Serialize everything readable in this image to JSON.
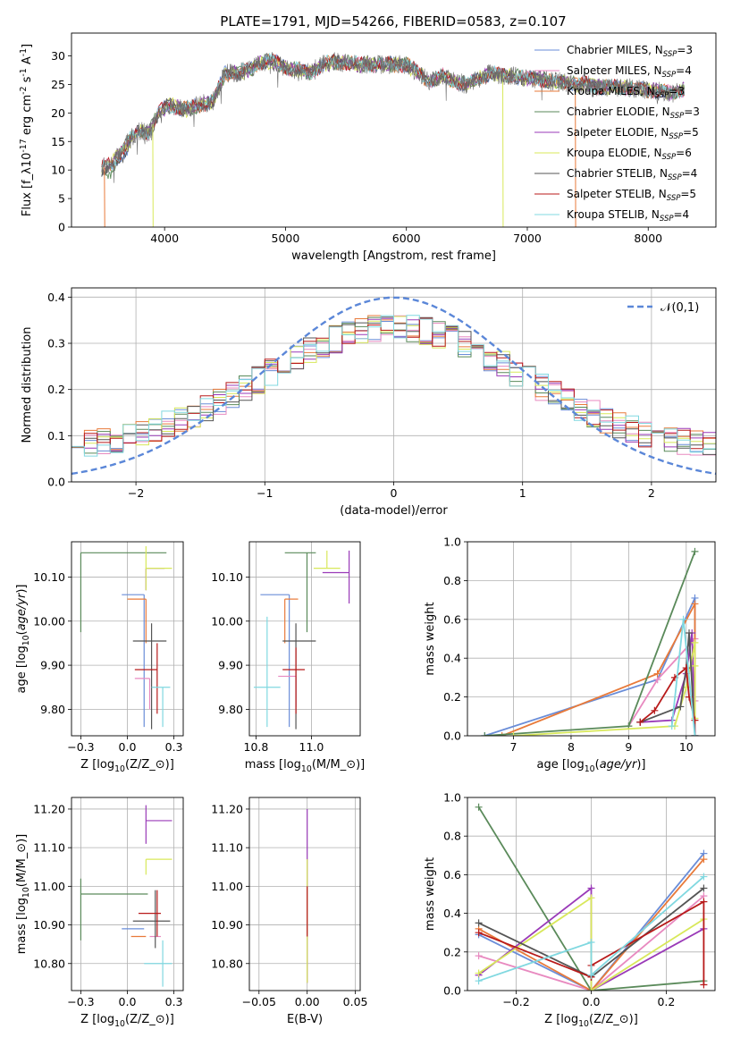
{
  "figure_title": "PLATE=1791, MJD=54266, FIBERID=0583, z=0.107",
  "models": [
    {
      "label": "Chabrier MILES, N$_{SSP}$=3",
      "main": "Chabrier MILES, N",
      "sub": "SSP",
      "tail": "=3",
      "color": "#6a8dd8"
    },
    {
      "label": "Salpeter MILES, N$_{SSP}$=4",
      "main": "Salpeter MILES, N",
      "sub": "SSP",
      "tail": "=4",
      "color": "#e88ac0"
    },
    {
      "label": "Kroupa MILES, N$_{SSP}$=3",
      "main": "Kroupa MILES, N",
      "sub": "SSP",
      "tail": "=3",
      "color": "#e87a3a"
    },
    {
      "label": "Chabrier ELODIE, N$_{SSP}$=3",
      "main": "Chabrier ELODIE, N",
      "sub": "SSP",
      "tail": "=3",
      "color": "#5a8a5a"
    },
    {
      "label": "Salpeter ELODIE, N$_{SSP}$=5",
      "main": "Salpeter ELODIE, N",
      "sub": "SSP",
      "tail": "=5",
      "color": "#9a3ab8"
    },
    {
      "label": "Kroupa ELODIE, N$_{SSP}$=6",
      "main": "Kroupa ELODIE, N",
      "sub": "SSP",
      "tail": "=6",
      "color": "#d8e85a"
    },
    {
      "label": "Chabrier STELIB, N$_{SSP}$=4",
      "main": "Chabrier STELIB, N",
      "sub": "SSP",
      "tail": "=4",
      "color": "#555555"
    },
    {
      "label": "Salpeter STELIB, N$_{SSP}$=5",
      "main": "Salpeter STELIB, N",
      "sub": "SSP",
      "tail": "=5",
      "color": "#b81a1a"
    },
    {
      "label": "Kroupa STELIB, N$_{SSP}$=4",
      "main": "Kroupa STELIB, N",
      "sub": "SSP",
      "tail": "=4",
      "color": "#80d8e0"
    }
  ],
  "chart_data": [
    {
      "id": "spectrum",
      "type": "line",
      "xlabel": "wavelength [Angstrom, rest frame]",
      "ylabel": "Flux [f$_\\lambda$10$^{-17}$ erg cm$^{-2}$ s$^{-1}$ A$^{-1}$]",
      "xlim": [
        3230,
        8560
      ],
      "ylim": [
        0,
        34
      ],
      "xticks": [
        4000,
        5000,
        6000,
        7000,
        8000
      ],
      "yticks": [
        0,
        5,
        10,
        15,
        20,
        25,
        30
      ],
      "legend": "upper right",
      "data_spectrum": {
        "x": [
          3480,
          3560,
          3650,
          3720,
          3800,
          3870,
          3950,
          4050,
          4150,
          4300,
          4400,
          4500,
          4600,
          4700,
          4800,
          4900,
          5000,
          5100,
          5200,
          5300,
          5400,
          5600,
          5800,
          6000,
          6100,
          6200,
          6300,
          6400,
          6500,
          6600,
          6700,
          6800,
          6900,
          7000,
          7100,
          7200,
          7300,
          7400,
          7500,
          7600,
          7700,
          7800,
          8000,
          8200,
          8300
        ],
        "y": [
          10.5,
          11,
          13.5,
          15.5,
          17,
          16.5,
          20,
          21.5,
          20.5,
          21.5,
          22,
          27,
          27,
          27.5,
          29,
          29,
          28,
          27.5,
          27,
          28.5,
          29,
          28.5,
          28.5,
          28.5,
          27,
          25.5,
          26.5,
          25.5,
          25,
          26,
          27,
          26.5,
          26.5,
          26,
          26,
          25.5,
          25.5,
          25,
          25,
          24.5,
          24.5,
          24.5,
          24,
          23.5,
          24
        ]
      },
      "model_dropouts_x": [
        3505,
        3905,
        6800,
        7400
      ]
    },
    {
      "id": "residual_distribution",
      "type": "histogram",
      "xlabel": "(data-model)/error",
      "ylabel": "Normed distribution",
      "xlim": [
        -2.5,
        2.5
      ],
      "ylim": [
        0,
        0.42
      ],
      "xticks": [
        -2,
        -1,
        0,
        1,
        2
      ],
      "yticks": [
        0.0,
        0.1,
        0.2,
        0.3,
        0.4
      ],
      "grid": true,
      "legend": "upper right",
      "reference_curve": {
        "label": "$\\mathcal{N}(0,1)$",
        "color": "#5b87d8",
        "style": "dashed"
      },
      "bin_width": 0.1,
      "bin_range": [
        -2.5,
        2.5
      ]
    },
    {
      "id": "age_vs_Z",
      "type": "errorbar",
      "xlabel": "Z [log$_{10}$($Z/Z_\\odot$)]",
      "ylabel": "age  [log$_{10}$($age/yr$)]",
      "xlim": [
        -0.3,
        0.3
      ],
      "ylim": [
        9.74,
        10.18
      ],
      "xticks": [
        -0.25,
        0.0,
        0.25
      ],
      "yticks": [
        9.8,
        9.9,
        10.0,
        10.1
      ],
      "grid": true,
      "points": [
        {
          "x": 0.09,
          "y": 10.06,
          "xerr": [
            0.12,
            0.0
          ],
          "yerr": [
            0.3,
            0.0
          ]
        },
        {
          "x": 0.12,
          "y": 9.87,
          "xerr": [
            0.08,
            0.0
          ],
          "yerr": [
            0.07,
            0.0
          ]
        },
        {
          "x": 0.1,
          "y": 10.05,
          "xerr": [
            0.1,
            0.0
          ],
          "yerr": [
            0.1,
            0.0
          ]
        },
        {
          "x": -0.25,
          "y": 10.155,
          "xerr": [
            0.0,
            0.46
          ],
          "yerr": [
            0.18,
            0.0
          ]
        },
        {
          "x": 0.1,
          "y": 10.12,
          "xerr": [
            0.0,
            0.1
          ],
          "yerr": [
            0.05,
            0.0
          ]
        },
        {
          "x": 0.1,
          "y": 10.12,
          "xerr": [
            0.0,
            0.14
          ],
          "yerr": [
            0.05,
            0.05
          ]
        },
        {
          "x": 0.13,
          "y": 9.955,
          "xerr": [
            0.1,
            0.08
          ],
          "yerr": [
            0.2,
            0.04
          ]
        },
        {
          "x": 0.16,
          "y": 9.89,
          "xerr": [
            0.12,
            0.0
          ],
          "yerr": [
            0.1,
            0.06
          ]
        },
        {
          "x": 0.19,
          "y": 9.85,
          "xerr": [
            0.06,
            0.04
          ],
          "yerr": [
            0.09,
            0.0
          ]
        }
      ]
    },
    {
      "id": "age_vs_mass",
      "type": "errorbar",
      "xlabel": "mass [log$_{10}$($M/M_\\odot$)]",
      "ylabel": "",
      "xlim": [
        10.72,
        11.22
      ],
      "ylim": [
        9.74,
        10.18
      ],
      "xticks": [
        10.75,
        11.0
      ],
      "yticks": [
        9.8,
        9.9,
        10.0,
        10.1
      ],
      "grid": true,
      "points": [
        {
          "x": 10.9,
          "y": 10.06,
          "xerr": [
            0.13,
            0.0
          ],
          "yerr": [
            0.3,
            0.0
          ]
        },
        {
          "x": 10.93,
          "y": 9.875,
          "xerr": [
            0.08,
            0.0
          ],
          "yerr": [
            0.07,
            0.0
          ]
        },
        {
          "x": 10.88,
          "y": 10.05,
          "xerr": [
            0.0,
            0.06
          ],
          "yerr": [
            0.1,
            0.0
          ]
        },
        {
          "x": 10.98,
          "y": 10.155,
          "xerr": [
            0.1,
            0.04
          ],
          "yerr": [
            0.18,
            0.0
          ]
        },
        {
          "x": 11.17,
          "y": 10.11,
          "xerr": [
            0.12,
            0.0
          ],
          "yerr": [
            0.07,
            0.05
          ]
        },
        {
          "x": 11.07,
          "y": 10.12,
          "xerr": [
            0.06,
            0.06
          ],
          "yerr": [
            0.0,
            0.04
          ]
        },
        {
          "x": 10.93,
          "y": 9.955,
          "xerr": [
            0.06,
            0.09
          ],
          "yerr": [
            0.2,
            0.04
          ]
        },
        {
          "x": 10.93,
          "y": 9.89,
          "xerr": [
            0.06,
            0.04
          ],
          "yerr": [
            0.1,
            0.05
          ]
        },
        {
          "x": 10.8,
          "y": 9.85,
          "xerr": [
            0.06,
            0.06
          ],
          "yerr": [
            0.09,
            0.16
          ]
        }
      ]
    },
    {
      "id": "mass_weight_vs_age",
      "type": "line",
      "xlabel": "age  [log$_{10}$($age/yr$)]",
      "ylabel": "mass weight",
      "xlim": [
        6.2,
        10.5
      ],
      "ylim": [
        0,
        1
      ],
      "xticks": [
        7,
        8,
        9,
        10
      ],
      "yticks": [
        0.0,
        0.2,
        0.4,
        0.6,
        0.8,
        1.0
      ],
      "grid": true,
      "series": [
        {
          "x": [
            6.5,
            9.5,
            10.15,
            10.15
          ],
          "y": [
            0.0,
            0.29,
            0.71,
            0.0
          ]
        },
        {
          "x": [
            9.0,
            9.5,
            10.15,
            10.15
          ],
          "y": [
            0.05,
            0.29,
            0.5,
            0.18
          ]
        },
        {
          "x": [
            6.8,
            9.5,
            10.15,
            10.15
          ],
          "y": [
            0.0,
            0.32,
            0.68,
            0.0
          ]
        },
        {
          "x": [
            6.5,
            9.0,
            10.15
          ],
          "y": [
            0.0,
            0.05,
            0.95
          ]
        },
        {
          "x": [
            9.2,
            9.75,
            10.0,
            10.1,
            10.15
          ],
          "y": [
            0.07,
            0.08,
            0.32,
            0.53,
            0.0
          ]
        },
        {
          "x": [
            7.0,
            9.8,
            10.0,
            10.15,
            10.15,
            10.15
          ],
          "y": [
            0.0,
            0.05,
            0.25,
            0.48,
            0.36,
            0.09
          ]
        },
        {
          "x": [
            9.2,
            9.9,
            10.0,
            10.05,
            10.15
          ],
          "y": [
            0.07,
            0.15,
            0.35,
            0.53,
            0.0
          ]
        },
        {
          "x": [
            9.2,
            9.45,
            9.8,
            10.0,
            10.05,
            10.15
          ],
          "y": [
            0.07,
            0.13,
            0.3,
            0.35,
            0.2,
            0.08
          ]
        },
        {
          "x": [
            9.75,
            9.95,
            10.15
          ],
          "y": [
            0.05,
            0.6,
            0.0
          ]
        }
      ]
    },
    {
      "id": "mass_vs_Z",
      "type": "errorbar",
      "xlabel": "Z [log$_{10}$($Z/Z_\\odot$)]",
      "ylabel": "mass [log$_{10}$($M/M_\\odot$)]",
      "xlim": [
        -0.3,
        0.3
      ],
      "ylim": [
        10.73,
        11.23
      ],
      "xticks": [
        -0.25,
        0.0,
        0.25
      ],
      "yticks": [
        10.8,
        10.9,
        11.0,
        11.1,
        11.2
      ],
      "grid": true,
      "points": [
        {
          "x": 0.09,
          "y": 10.89,
          "xerr": [
            0.12,
            0.0
          ],
          "yerr": [
            0.0,
            0.0
          ]
        },
        {
          "x": 0.12,
          "y": 10.87,
          "xerr": [
            0.0,
            0.06
          ],
          "yerr": [
            0.0,
            0.0
          ]
        },
        {
          "x": 0.1,
          "y": 10.87,
          "xerr": [
            0.08,
            0.0
          ],
          "yerr": [
            0.0,
            0.0
          ]
        },
        {
          "x": -0.25,
          "y": 10.98,
          "xerr": [
            0.0,
            0.36
          ],
          "yerr": [
            0.12,
            0.04
          ]
        },
        {
          "x": 0.1,
          "y": 11.17,
          "xerr": [
            0.0,
            0.14
          ],
          "yerr": [
            0.06,
            0.04
          ]
        },
        {
          "x": 0.1,
          "y": 11.07,
          "xerr": [
            0.0,
            0.14
          ],
          "yerr": [
            0.04,
            0.0
          ]
        },
        {
          "x": 0.15,
          "y": 10.91,
          "xerr": [
            0.12,
            0.08
          ],
          "yerr": [
            0.07,
            0.08
          ]
        },
        {
          "x": 0.16,
          "y": 10.93,
          "xerr": [
            0.1,
            0.02
          ],
          "yerr": [
            0.06,
            0.06
          ]
        },
        {
          "x": 0.19,
          "y": 10.8,
          "xerr": [
            0.1,
            0.05
          ],
          "yerr": [
            0.06,
            0.06
          ]
        }
      ]
    },
    {
      "id": "mass_vs_EBV",
      "type": "errorbar",
      "xlabel": "E(B-V)",
      "ylabel": "",
      "xlim": [
        -0.06,
        0.055
      ],
      "ylim": [
        10.73,
        11.23
      ],
      "xticks": [
        -0.05,
        0.0,
        0.05
      ],
      "yticks": [
        10.8,
        10.9,
        11.0,
        11.1,
        11.2
      ],
      "grid": true,
      "points": [
        {
          "x": 0.0,
          "y": 11.0,
          "xerr": [
            0,
            0
          ],
          "yerr": [
            0.25,
            0.2
          ]
        },
        {
          "x": 0.0,
          "y": 11.0,
          "xerr": [
            0,
            0
          ],
          "yerr": [
            0.25,
            0.07
          ]
        },
        {
          "x": 0.0,
          "y": 10.95,
          "xerr": [
            0,
            0
          ],
          "yerr": [
            0.08,
            0.05
          ]
        }
      ]
    },
    {
      "id": "mass_weight_vs_Z",
      "type": "line",
      "xlabel": "Z [log$_{10}$($Z/Z_\\odot$)]",
      "ylabel": "mass weight",
      "xlim": [
        -0.33,
        0.33
      ],
      "ylim": [
        0,
        1
      ],
      "xticks": [
        -0.2,
        0.0,
        0.2
      ],
      "yticks": [
        0.0,
        0.2,
        0.4,
        0.6,
        0.8,
        1.0
      ],
      "grid": true,
      "series": [
        {
          "x": [
            -0.3,
            0.0,
            0.3
          ],
          "y": [
            0.29,
            0.0,
            0.71
          ]
        },
        {
          "x": [
            -0.3,
            0.0,
            0.3
          ],
          "y": [
            0.18,
            0.0,
            0.49
          ]
        },
        {
          "x": [
            -0.3,
            0.0,
            0.3
          ],
          "y": [
            0.32,
            0.0,
            0.68
          ]
        },
        {
          "x": [
            -0.3,
            0.0,
            0.3
          ],
          "y": [
            0.95,
            0.0,
            0.05
          ]
        },
        {
          "x": [
            -0.3,
            0.0,
            0.0,
            0.3
          ],
          "y": [
            0.08,
            0.53,
            0.0,
            0.32
          ]
        },
        {
          "x": [
            -0.3,
            0.0,
            0.0,
            0.3
          ],
          "y": [
            0.09,
            0.48,
            0.0,
            0.37
          ]
        },
        {
          "x": [
            -0.3,
            0.0,
            0.0,
            0.3
          ],
          "y": [
            0.35,
            0.07,
            0.07,
            0.53
          ]
        },
        {
          "x": [
            -0.3,
            0.0,
            0.0,
            0.3,
            0.3
          ],
          "y": [
            0.3,
            0.07,
            0.13,
            0.46,
            0.03
          ]
        },
        {
          "x": [
            -0.3,
            0.0,
            0.0,
            0.3
          ],
          "y": [
            0.05,
            0.25,
            0.08,
            0.59
          ]
        }
      ]
    }
  ]
}
